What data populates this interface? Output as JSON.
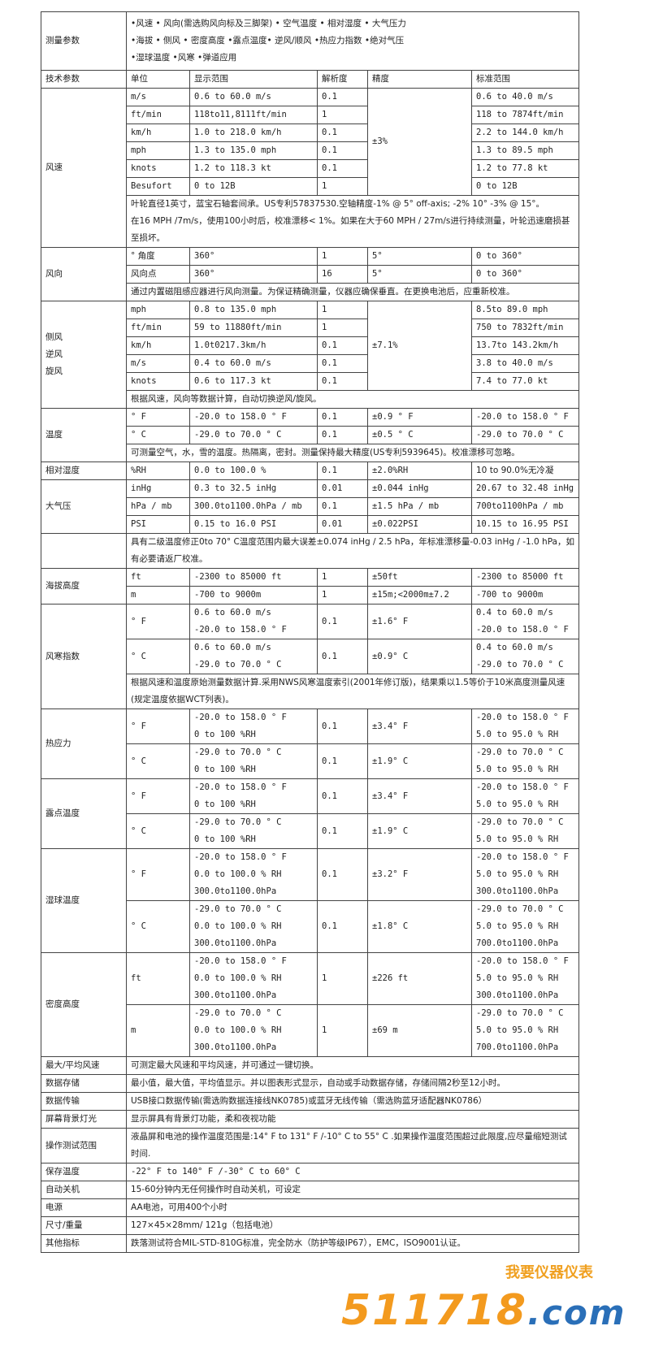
{
  "table": {
    "rows": [
      [
        {
          "t": "测量参数"
        },
        {
          "t": "     •风速  • 风向(需选购风向标及三脚架) • 空气温度 • 相对湿度 • 大气压力\n     •海拔  • 侧风  • 密度高度   •露点温度• 逆风/顺风 •热应力指数 •绝对气压\n     •湿球温度   •风寒  •弹道应用",
          "cs": 5,
          "h": 71
        }
      ],
      [
        {
          "t": "技术参数"
        },
        {
          "t": "单位"
        },
        {
          "t": "显示范围"
        },
        {
          "t": "解析度"
        },
        {
          "t": "精度"
        },
        {
          "t": "标准范围"
        }
      ],
      [
        {
          "t": "风速",
          "rs": 7
        },
        {
          "t": "m/s"
        },
        {
          "t": "0.6 to 60.0 m/s"
        },
        {
          "t": "0.1"
        },
        {
          "t": "±3%",
          "rs": 6
        },
        {
          "t": "0.6 to 40.0 m/s"
        }
      ],
      [
        {
          "t": "ft/min"
        },
        {
          "t": "118to11,8111ft/min"
        },
        {
          "t": "1"
        },
        {
          "t": "118 to 7874ft/min"
        }
      ],
      [
        {
          "t": "km/h"
        },
        {
          "t": "1.0 to 218.0 km/h"
        },
        {
          "t": "0.1"
        },
        {
          "t": "2.2 to 144.0 km/h"
        }
      ],
      [
        {
          "t": "mph"
        },
        {
          "t": "1.3 to 135.0 mph"
        },
        {
          "t": "0.1"
        },
        {
          "t": "1.3 to 89.5 mph"
        }
      ],
      [
        {
          "t": "knots"
        },
        {
          "t": "1.2 to 118.3 kt"
        },
        {
          "t": "0.1"
        },
        {
          "t": "1.2 to 77.8 kt"
        }
      ],
      [
        {
          "t": "Besufort"
        },
        {
          "t": "0 to 12B"
        },
        {
          "t": "1"
        },
        {
          "t": "0 to 12B"
        }
      ],
      [
        {
          "t": "叶轮直径1英寸，蓝宝石轴套间承。US专利57837530.空轴精度-1% @ 5° off-axis; -2% 10°  -3% @ 15°。\n在16 MPH /7m/s，使用100小时后，校准漂移< 1%。如果在大于60 MPH / 27m/s进行持续测量，叶轮迅速磨损甚至损坏。",
          "cs": 5
        }
      ],
      [
        {
          "t": "风向",
          "rs": 3
        },
        {
          "t": "° 角度"
        },
        {
          "t": "360°"
        },
        {
          "t": "1"
        },
        {
          "t": "5°"
        },
        {
          "t": "0 to 360°"
        }
      ],
      [
        {
          "t": "风向点"
        },
        {
          "t": "360°"
        },
        {
          "t": "16"
        },
        {
          "t": "5°"
        },
        {
          "t": "0 to 360°"
        }
      ],
      [
        {
          "t": "通过内置磁阻感应器进行风向测量。为保证精确测量，仪器应确保垂直。在更换电池后，应重新校准。",
          "cs": 5
        }
      ],
      [
        {
          "t": "侧风\n逆风\n旋风",
          "rs": 6
        },
        {
          "t": "mph"
        },
        {
          "t": "0.8 to 135.0 mph"
        },
        {
          "t": "1"
        },
        {
          "t": "±7.1%",
          "rs": 5
        },
        {
          "t": "8.5to 89.0 mph"
        }
      ],
      [
        {
          "t": "ft/min"
        },
        {
          "t": "59 to 11880ft/min"
        },
        {
          "t": "1"
        },
        {
          "t": "750 to 7832ft/min"
        }
      ],
      [
        {
          "t": "km/h"
        },
        {
          "t": "1.0t0217.3km/h"
        },
        {
          "t": "0.1"
        },
        {
          "t": "13.7to 143.2km/h"
        }
      ],
      [
        {
          "t": "m/s"
        },
        {
          "t": "0.4 to 60.0 m/s"
        },
        {
          "t": "0.1"
        },
        {
          "t": "3.8 to 40.0 m/s"
        }
      ],
      [
        {
          "t": "knots"
        },
        {
          "t": "0.6 to 117.3 kt"
        },
        {
          "t": "0.1"
        },
        {
          "t": "7.4 to 77.0 kt"
        }
      ],
      [
        {
          "t": "根据风速，风向等数据计算，自动切换逆风/旋风。",
          "cs": 5
        }
      ],
      [
        {
          "t": "温度",
          "rs": 3
        },
        {
          "t": "° F"
        },
        {
          "t": "-20.0 to 158.0 ° F"
        },
        {
          "t": "0.1"
        },
        {
          "t": "±0.9 ° F"
        },
        {
          "t": "-20.0 to 158.0 ° F"
        }
      ],
      [
        {
          "t": "° C"
        },
        {
          "t": "-29.0 to 70.0 ° C"
        },
        {
          "t": "0.1"
        },
        {
          "t": "±0.5 ° C"
        },
        {
          "t": "-29.0 to 70.0 ° C"
        }
      ],
      [
        {
          "t": "可测量空气，水，雪的温度。热隔离，密封。测量保持最大精度(US专利5939645)。校准漂移可忽略。",
          "cs": 5
        }
      ],
      [
        {
          "t": "相对湿度"
        },
        {
          "t": "%RH"
        },
        {
          "t": "0.0 to 100.0 %"
        },
        {
          "t": "0.1"
        },
        {
          "t": "±2.0%RH"
        },
        {
          "t": "10 to 90.0%无冷凝"
        }
      ],
      [
        {
          "t": "大气压",
          "rs": 3
        },
        {
          "t": "inHg"
        },
        {
          "t": "0.3 to 32.5 inHg"
        },
        {
          "t": "0.01"
        },
        {
          "t": "±0.044 inHg"
        },
        {
          "t": "20.67 to 32.48 inHg"
        }
      ],
      [
        {
          "t": "hPa / mb"
        },
        {
          "t": "300.0to1100.0hPa / mb"
        },
        {
          "t": "0.1"
        },
        {
          "t": "±1.5 hPa / mb"
        },
        {
          "t": "700to1100hPa / mb"
        }
      ],
      [
        {
          "t": "PSI"
        },
        {
          "t": "0.15 to 16.0 PSI"
        },
        {
          "t": "0.01"
        },
        {
          "t": "±0.022PSI"
        },
        {
          "t": "10.15 to 16.95 PSI"
        }
      ],
      [
        {
          "t": ""
        },
        {
          "t": "具有二级温度修正0to 70° C温度范围内最大误差±0.074 inHg / 2.5 hPa，年标准漂移量-0.03 inHg / -1.0 hPa，如有必要请返厂校准。",
          "cs": 5
        }
      ],
      [
        {
          "t": "海拔高度",
          "rs": 2
        },
        {
          "t": "ft"
        },
        {
          "t": "-2300 to 85000 ft"
        },
        {
          "t": "1"
        },
        {
          "t": "±50ft"
        },
        {
          "t": "-2300 to 85000 ft"
        }
      ],
      [
        {
          "t": "m"
        },
        {
          "t": "-700 to 9000m"
        },
        {
          "t": "1"
        },
        {
          "t": "±15m;<2000m±7.2"
        },
        {
          "t": "-700 to 9000m"
        }
      ],
      [
        {
          "t": "风寒指数",
          "rs": 3
        },
        {
          "t": "° F"
        },
        {
          "t": "0.6 to 60.0 m/s\n-20.0 to 158.0 ° F"
        },
        {
          "t": "0.1"
        },
        {
          "t": "±1.6° F"
        },
        {
          "t": "0.4 to 60.0 m/s\n-20.0 to 158.0 ° F"
        }
      ],
      [
        {
          "t": "° C"
        },
        {
          "t": "0.6 to 60.0 m/s\n-29.0 to 70.0 ° C"
        },
        {
          "t": "0.1"
        },
        {
          "t": "±0.9° C"
        },
        {
          "t": "0.4 to 60.0 m/s\n-29.0 to 70.0 ° C"
        }
      ],
      [
        {
          "t": "根据风速和温度原始测量数据计算.采用NWS风寒温度索引(2001年修订版)，结果乘以1.5等价于10米高度测量风速(规定温度依据WCT列表)。",
          "cs": 5
        }
      ],
      [
        {
          "t": "热应力",
          "rs": 2
        },
        {
          "t": "° F"
        },
        {
          "t": "-20.0 to 158.0 ° F\n0 to 100 %RH"
        },
        {
          "t": "0.1"
        },
        {
          "t": "±3.4° F"
        },
        {
          "t": "-20.0 to 158.0 ° F\n5.0 to 95.0 % RH"
        }
      ],
      [
        {
          "t": "° C"
        },
        {
          "t": "-29.0 to 70.0 ° C\n0 to 100 %RH"
        },
        {
          "t": "0.1"
        },
        {
          "t": "±1.9° C"
        },
        {
          "t": "-29.0 to 70.0 ° C\n5.0 to 95.0 % RH"
        }
      ],
      [
        {
          "t": "露点温度",
          "rs": 2
        },
        {
          "t": "° F"
        },
        {
          "t": "-20.0 to 158.0 ° F\n0 to 100 %RH"
        },
        {
          "t": "0.1"
        },
        {
          "t": "±3.4° F"
        },
        {
          "t": "-20.0 to 158.0 ° F\n5.0 to 95.0 % RH"
        }
      ],
      [
        {
          "t": "° C"
        },
        {
          "t": "-29.0 to 70.0 ° C\n0 to 100 %RH"
        },
        {
          "t": "0.1"
        },
        {
          "t": "±1.9° C"
        },
        {
          "t": "-29.0 to 70.0 ° C\n5.0 to 95.0 % RH"
        }
      ],
      [
        {
          "t": "湿球温度",
          "rs": 2
        },
        {
          "t": "° F"
        },
        {
          "t": "-20.0 to 158.0 ° F\n0.0 to 100.0 % RH\n300.0to1100.0hPa"
        },
        {
          "t": "0.1"
        },
        {
          "t": "±3.2° F"
        },
        {
          "t": "-20.0 to 158.0 ° F\n5.0 to 95.0 % RH\n300.0to1100.0hPa"
        }
      ],
      [
        {
          "t": "° C"
        },
        {
          "t": "-29.0 to 70.0 ° C\n0.0 to 100.0 % RH\n300.0to1100.0hPa"
        },
        {
          "t": "0.1"
        },
        {
          "t": "±1.8° C"
        },
        {
          "t": "-29.0 to 70.0 ° C\n5.0 to 95.0 % RH\n700.0to1100.0hPa"
        }
      ],
      [
        {
          "t": "密度高度",
          "rs": 2
        },
        {
          "t": "ft"
        },
        {
          "t": "-20.0 to 158.0 ° F\n0.0 to 100.0 % RH\n300.0to1100.0hPa"
        },
        {
          "t": "1"
        },
        {
          "t": "±226 ft"
        },
        {
          "t": "-20.0 to 158.0 ° F\n5.0 to 95.0 % RH\n300.0to1100.0hPa"
        }
      ],
      [
        {
          "t": "m"
        },
        {
          "t": "-29.0 to 70.0 ° C\n0.0 to 100.0 % RH\n300.0to1100.0hPa"
        },
        {
          "t": "1"
        },
        {
          "t": "±69 m"
        },
        {
          "t": "-29.0 to 70.0 ° C\n5.0 to 95.0 % RH\n700.0to1100.0hPa"
        }
      ],
      [
        {
          "t": "最大/平均风速"
        },
        {
          "t": "可测定最大风速和平均风速，并可通过一键切换。",
          "cs": 5
        }
      ],
      [
        {
          "t": "数据存储"
        },
        {
          "t": "最小值，最大值，平均值显示。并以图表形式显示，自动或手动数据存储，存储间隔2秒至12小时。",
          "cs": 5
        }
      ],
      [
        {
          "t": "数据传输"
        },
        {
          "t": "USB接口数据传输(需选购数据连接线NK0785)或蓝牙无线传输（需选购蓝牙适配器NK0786）",
          "cs": 5
        }
      ],
      [
        {
          "t": "屏幕背景灯光"
        },
        {
          "t": "显示屏具有背景灯功能，柔和夜视功能",
          "cs": 5
        }
      ],
      [
        {
          "t": "操作测试范围"
        },
        {
          "t": "液晶屏和电池的操作温度范围是:14° F to 131° F /-10° C to 55° C .如果操作温度范围超过此限度,应尽量缩短测试时间.",
          "cs": 5
        }
      ],
      [
        {
          "t": "保存温度"
        },
        {
          "t": "-22° F to 140° F /-30° C to 60° C",
          "cs": 5
        }
      ],
      [
        {
          "t": "自动关机"
        },
        {
          "t": "15-60分钟内无任何操作时自动关机，可设定",
          "cs": 5
        }
      ],
      [
        {
          "t": "电源"
        },
        {
          "t": "AA电池，可用400个小时",
          "cs": 5
        }
      ],
      [
        {
          "t": "尺寸/重量"
        },
        {
          "t": "127×45×28mm/ 121g（包括电池）",
          "cs": 5
        }
      ],
      [
        {
          "t": "其他指标"
        },
        {
          "t": "跌落测试符合MIL-STD-810G标准，完全防水（防护等级IP67），EMC，ISO9001认证。",
          "cs": 5
        }
      ]
    ]
  },
  "watermark": {
    "tagline": "我要仪器仪表",
    "domain_main": "511718",
    "domain_suffix": ".com",
    "color": "#f39a1e"
  }
}
